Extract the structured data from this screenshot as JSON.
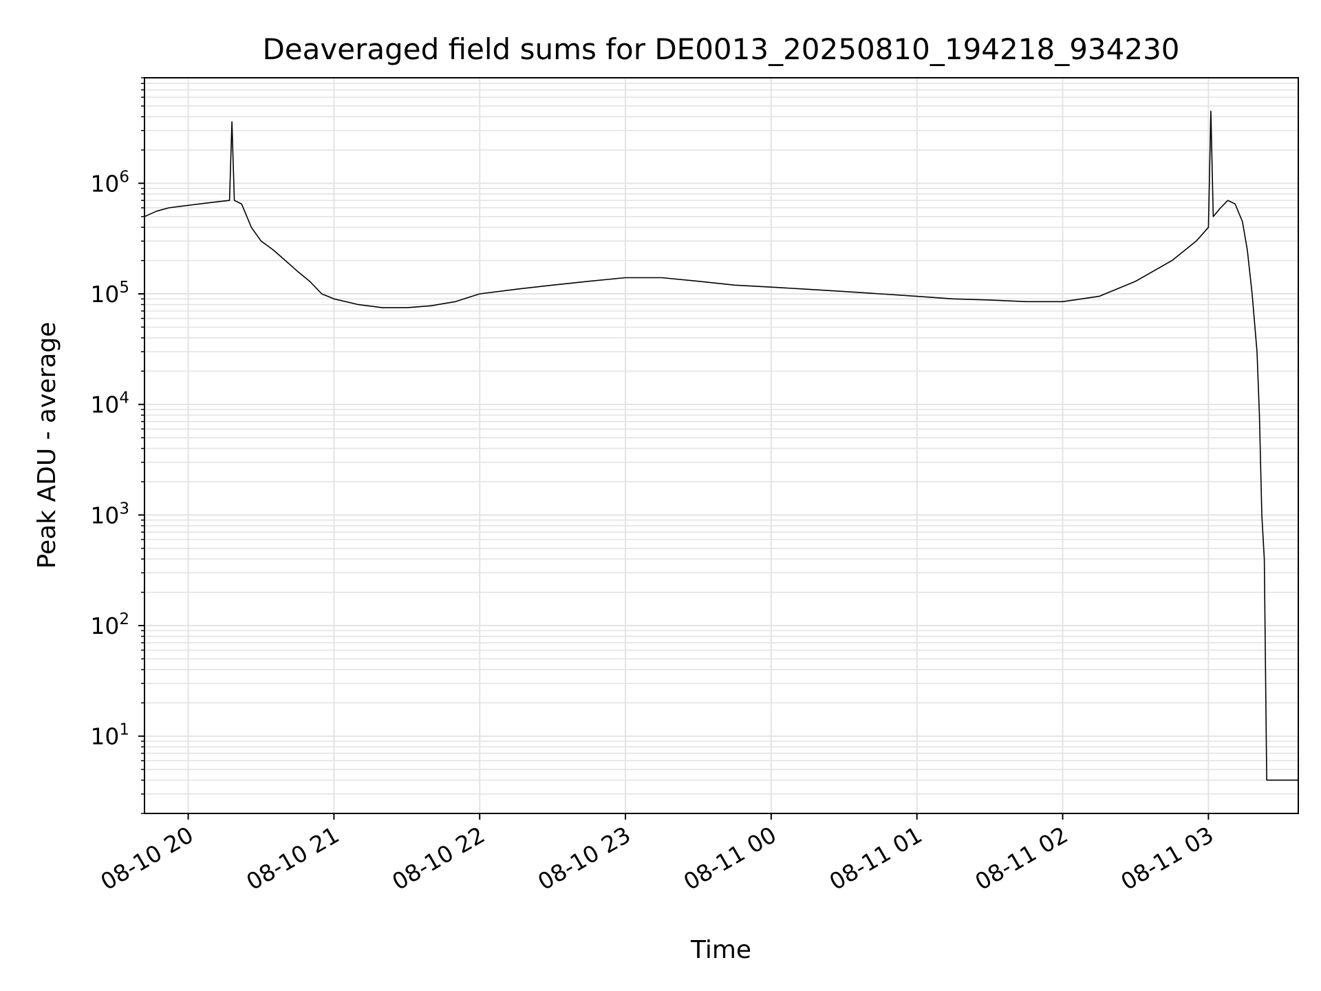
{
  "chart_data": {
    "type": "line",
    "title": "Deaveraged field sums for DE0013_20250810_194218_934230",
    "xlabel": "Time",
    "ylabel": "Peak ADU - average",
    "yscale": "log",
    "grid": true,
    "xlim": [
      "2025-08-10 19:42",
      "2025-08-11 03:37"
    ],
    "ylim": [
      2,
      9000000
    ],
    "x_ticks": [
      {
        "value": "2025-08-10 20:00",
        "label": "08-10 20"
      },
      {
        "value": "2025-08-10 21:00",
        "label": "08-10 21"
      },
      {
        "value": "2025-08-10 22:00",
        "label": "08-10 22"
      },
      {
        "value": "2025-08-10 23:00",
        "label": "08-10 23"
      },
      {
        "value": "2025-08-11 00:00",
        "label": "08-11 00"
      },
      {
        "value": "2025-08-11 01:00",
        "label": "08-11 01"
      },
      {
        "value": "2025-08-11 02:00",
        "label": "08-11 02"
      },
      {
        "value": "2025-08-11 03:00",
        "label": "08-11 03"
      }
    ],
    "y_ticks": [
      {
        "value": 10,
        "base": "10",
        "exp": "1"
      },
      {
        "value": 100,
        "base": "10",
        "exp": "2"
      },
      {
        "value": 1000,
        "base": "10",
        "exp": "3"
      },
      {
        "value": 10000,
        "base": "10",
        "exp": "4"
      },
      {
        "value": 100000,
        "base": "10",
        "exp": "5"
      },
      {
        "value": 1000000,
        "base": "10",
        "exp": "6"
      }
    ],
    "series": [
      {
        "color": "#000000",
        "points": [
          [
            "2025-08-10 19:42",
            500000
          ],
          [
            "2025-08-10 19:47",
            560000
          ],
          [
            "2025-08-10 19:52",
            600000
          ],
          [
            "2025-08-10 19:57",
            620000
          ],
          [
            "2025-08-10 20:02",
            640000
          ],
          [
            "2025-08-10 20:07",
            660000
          ],
          [
            "2025-08-10 20:12",
            680000
          ],
          [
            "2025-08-10 20:17",
            700000
          ],
          [
            "2025-08-10 20:18",
            3600000
          ],
          [
            "2025-08-10 20:19",
            700000
          ],
          [
            "2025-08-10 20:22",
            650000
          ],
          [
            "2025-08-10 20:26",
            400000
          ],
          [
            "2025-08-10 20:30",
            300000
          ],
          [
            "2025-08-10 20:35",
            250000
          ],
          [
            "2025-08-10 20:40",
            200000
          ],
          [
            "2025-08-10 20:45",
            160000
          ],
          [
            "2025-08-10 20:50",
            130000
          ],
          [
            "2025-08-10 20:55",
            100000
          ],
          [
            "2025-08-10 21:00",
            90000
          ],
          [
            "2025-08-10 21:10",
            80000
          ],
          [
            "2025-08-10 21:20",
            75000
          ],
          [
            "2025-08-10 21:30",
            75000
          ],
          [
            "2025-08-10 21:40",
            78000
          ],
          [
            "2025-08-10 21:50",
            85000
          ],
          [
            "2025-08-10 22:00",
            100000
          ],
          [
            "2025-08-10 22:15",
            110000
          ],
          [
            "2025-08-10 22:30",
            120000
          ],
          [
            "2025-08-10 22:45",
            130000
          ],
          [
            "2025-08-10 23:00",
            140000
          ],
          [
            "2025-08-10 23:15",
            140000
          ],
          [
            "2025-08-10 23:30",
            130000
          ],
          [
            "2025-08-10 23:45",
            120000
          ],
          [
            "2025-08-11 00:00",
            115000
          ],
          [
            "2025-08-11 00:15",
            110000
          ],
          [
            "2025-08-11 00:30",
            105000
          ],
          [
            "2025-08-11 00:45",
            100000
          ],
          [
            "2025-08-11 01:00",
            95000
          ],
          [
            "2025-08-11 01:15",
            90000
          ],
          [
            "2025-08-11 01:30",
            88000
          ],
          [
            "2025-08-11 01:45",
            85000
          ],
          [
            "2025-08-11 02:00",
            85000
          ],
          [
            "2025-08-11 02:15",
            95000
          ],
          [
            "2025-08-11 02:30",
            130000
          ],
          [
            "2025-08-11 02:45",
            200000
          ],
          [
            "2025-08-11 02:55",
            300000
          ],
          [
            "2025-08-11 03:00",
            400000
          ],
          [
            "2025-08-11 03:01",
            4500000
          ],
          [
            "2025-08-11 03:02",
            500000
          ],
          [
            "2025-08-11 03:05",
            600000
          ],
          [
            "2025-08-11 03:08",
            700000
          ],
          [
            "2025-08-11 03:11",
            650000
          ],
          [
            "2025-08-11 03:14",
            450000
          ],
          [
            "2025-08-11 03:16",
            250000
          ],
          [
            "2025-08-11 03:18",
            100000
          ],
          [
            "2025-08-11 03:20",
            30000
          ],
          [
            "2025-08-11 03:21",
            8000
          ],
          [
            "2025-08-11 03:22",
            1000
          ],
          [
            "2025-08-11 03:23",
            400
          ],
          [
            "2025-08-11 03:24",
            4
          ],
          [
            "2025-08-11 03:37",
            4
          ]
        ]
      }
    ]
  }
}
